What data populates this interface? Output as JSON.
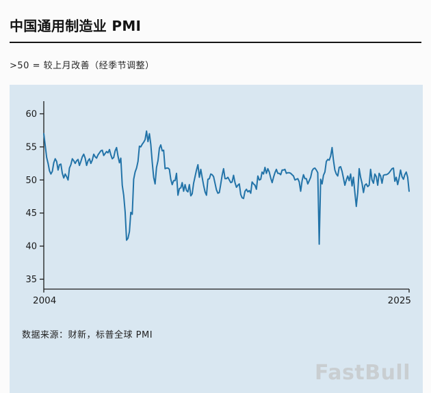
{
  "header": {
    "title": "中国通用制造业 PMI",
    "subtitle": ">50 = 较上月改善（经季节调整）"
  },
  "footer": {
    "source": "数据来源：财新，标普全球 PMI",
    "watermark": "FastBull"
  },
  "chart_data": {
    "type": "line",
    "title": "中国通用制造业 PMI",
    "xlabel": "",
    "ylabel": "",
    "grid": false,
    "legend": "none",
    "frequency": "monthly",
    "x_start_year": 2004,
    "x_end_year": 2025,
    "x_tick_labels": [
      "2004",
      "2025"
    ],
    "yticks": [
      35,
      40,
      45,
      50,
      55,
      60
    ],
    "ylim": [
      33.5,
      61.5
    ],
    "line_color": "#2273a8",
    "panel_bg": "#d9e7f1",
    "series": [
      {
        "name": "PMI",
        "values": [
          57.0,
          55.2,
          53.4,
          52.5,
          51.4,
          50.9,
          51.3,
          52.6,
          53.2,
          52.8,
          51.5,
          52.3,
          52.4,
          51.0,
          50.3,
          50.9,
          50.5,
          50.0,
          51.8,
          52.3,
          53.2,
          52.9,
          52.5,
          52.9,
          53.1,
          52.2,
          52.8,
          53.5,
          53.9,
          53.3,
          52.2,
          52.9,
          53.2,
          52.5,
          53.0,
          53.9,
          53.5,
          53.3,
          53.8,
          54.1,
          54.4,
          54.5,
          53.7,
          54.0,
          54.3,
          54.1,
          54.6,
          53.8,
          53.2,
          53.4,
          54.4,
          54.9,
          53.6,
          52.6,
          53.3,
          49.2,
          47.7,
          45.2,
          40.9,
          41.2,
          42.2,
          45.1,
          44.8,
          50.1,
          51.2,
          51.8,
          52.8,
          55.1,
          55.0,
          55.4,
          55.7,
          56.1,
          57.4,
          55.8,
          57.0,
          55.4,
          52.7,
          50.4,
          49.4,
          51.9,
          52.9,
          54.8,
          55.3,
          54.4,
          54.5,
          51.7,
          51.8,
          51.8,
          51.6,
          50.1,
          49.3,
          49.9,
          49.9,
          51.0,
          47.7,
          48.7,
          48.8,
          49.6,
          48.3,
          49.3,
          48.4,
          48.2,
          49.3,
          47.6,
          47.9,
          49.5,
          50.5,
          51.5,
          52.3,
          50.4,
          51.6,
          50.4,
          49.2,
          48.2,
          47.7,
          50.1,
          50.2,
          50.9,
          50.8,
          50.5,
          49.5,
          48.5,
          48.0,
          48.1,
          49.4,
          50.7,
          51.7,
          50.2,
          50.2,
          50.4,
          50.0,
          49.6,
          49.7,
          50.7,
          49.6,
          48.9,
          49.2,
          49.4,
          47.8,
          47.3,
          47.2,
          48.3,
          48.6,
          48.2,
          48.4,
          48.0,
          49.7,
          49.4,
          49.2,
          48.6,
          50.6,
          50.0,
          50.1,
          51.2,
          50.9,
          51.9,
          51.0,
          51.7,
          51.2,
          50.3,
          49.6,
          50.4,
          51.1,
          51.6,
          51.0,
          51.0,
          50.8,
          51.5,
          51.5,
          51.6,
          51.0,
          51.1,
          51.1,
          51.0,
          50.8,
          50.6,
          50.0,
          50.1,
          50.2,
          49.7,
          48.3,
          49.9,
          50.8,
          50.2,
          50.2,
          49.4,
          49.9,
          50.4,
          51.4,
          51.7,
          51.8,
          51.5,
          51.1,
          40.3,
          50.1,
          49.4,
          50.7,
          51.2,
          52.8,
          53.1,
          53.0,
          53.6,
          54.9,
          53.0,
          51.5,
          50.9,
          50.6,
          51.9,
          52.0,
          51.3,
          50.3,
          49.2,
          50.0,
          50.6,
          49.9,
          50.9,
          49.1,
          50.4,
          48.1,
          46.0,
          48.1,
          51.7,
          50.4,
          49.5,
          48.1,
          49.2,
          49.4,
          49.0,
          49.2,
          51.6,
          50.0,
          49.5,
          50.9,
          50.5,
          49.2,
          51.0,
          50.6,
          49.5,
          50.7,
          50.8,
          50.8,
          50.9,
          51.1,
          51.4,
          51.7,
          51.8,
          49.8,
          50.4,
          49.3,
          50.3,
          51.5,
          50.5,
          50.1,
          50.8,
          51.2,
          50.4,
          48.3
        ]
      }
    ]
  }
}
